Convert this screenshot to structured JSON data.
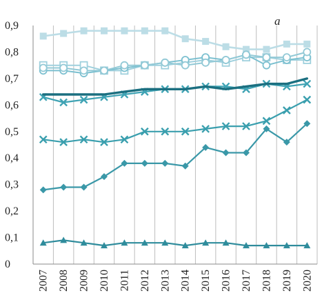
{
  "chart_data": {
    "type": "line",
    "panel_label": "a",
    "title": "",
    "xlabel": "",
    "ylabel": "",
    "ylim": [
      0,
      0.9
    ],
    "y_ticks": [
      "0",
      "0,1",
      "0,2",
      "0,3",
      "0,4",
      "0,5",
      "0,6",
      "0,7",
      "0,8",
      "0,9"
    ],
    "y_tick_values": [
      0,
      0.1,
      0.2,
      0.3,
      0.4,
      0.5,
      0.6,
      0.7,
      0.8,
      0.9
    ],
    "grid": "vertical",
    "x": [
      "2007",
      "2008",
      "2009",
      "2010",
      "2011",
      "2012",
      "2013",
      "2014",
      "2015",
      "2016",
      "2017",
      "2018",
      "2019",
      "2020"
    ],
    "series": [
      {
        "marker": "filled-square",
        "color": "#bcdde6",
        "width": 2.6,
        "values": [
          0.86,
          0.87,
          0.88,
          0.88,
          0.88,
          0.88,
          0.88,
          0.85,
          0.84,
          0.82,
          0.81,
          0.81,
          0.83,
          0.83
        ]
      },
      {
        "marker": "open-square",
        "color": "#9fd0dd",
        "width": 2,
        "values": [
          0.75,
          0.75,
          0.75,
          0.73,
          0.73,
          0.75,
          0.75,
          0.76,
          0.77,
          0.76,
          0.78,
          0.78,
          0.77,
          0.77
        ]
      },
      {
        "marker": "open-circle",
        "color": "#7cc0d0",
        "width": 2,
        "values": [
          0.73,
          0.73,
          0.72,
          0.73,
          0.74,
          0.75,
          0.76,
          0.77,
          0.78,
          0.77,
          0.79,
          0.75,
          0.77,
          0.78
        ]
      },
      {
        "marker": "open-circle",
        "color": "#92c9d6",
        "width": 2,
        "values": [
          0.74,
          0.74,
          0.73,
          0.73,
          0.75,
          0.75,
          0.76,
          0.75,
          0.76,
          0.77,
          0.79,
          0.78,
          0.78,
          0.8
        ]
      },
      {
        "marker": "cross",
        "color": "#3fa3b4",
        "width": 2.2,
        "values": [
          0.63,
          0.61,
          0.62,
          0.63,
          0.64,
          0.65,
          0.66,
          0.66,
          0.67,
          0.67,
          0.66,
          0.68,
          0.67,
          0.68
        ]
      },
      {
        "marker": "none",
        "color": "#1b6f80",
        "width": 3.4,
        "values": [
          0.64,
          0.64,
          0.64,
          0.64,
          0.65,
          0.66,
          0.66,
          0.66,
          0.67,
          0.66,
          0.67,
          0.68,
          0.68,
          0.7
        ]
      },
      {
        "marker": "cross",
        "color": "#3a9fae",
        "width": 2.2,
        "values": [
          0.47,
          0.46,
          0.47,
          0.46,
          0.47,
          0.5,
          0.5,
          0.5,
          0.51,
          0.52,
          0.52,
          0.54,
          0.58,
          0.62
        ]
      },
      {
        "marker": "diamond",
        "color": "#3a98a8",
        "width": 2.2,
        "values": [
          0.28,
          0.29,
          0.29,
          0.33,
          0.38,
          0.38,
          0.38,
          0.37,
          0.44,
          0.42,
          0.42,
          0.51,
          0.46,
          0.53
        ]
      },
      {
        "marker": "triangle",
        "color": "#2f8c9c",
        "width": 2.2,
        "values": [
          0.08,
          0.09,
          0.08,
          0.07,
          0.08,
          0.08,
          0.08,
          0.07,
          0.08,
          0.08,
          0.07,
          0.07,
          0.07,
          0.07
        ]
      }
    ]
  }
}
